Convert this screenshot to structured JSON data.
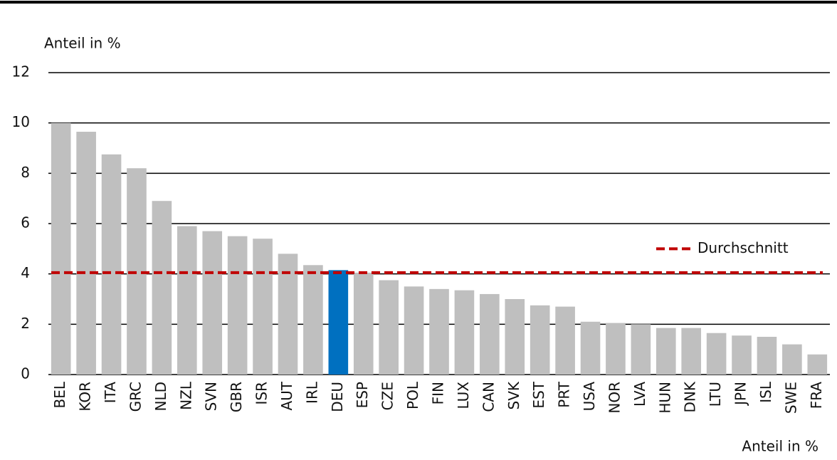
{
  "chart_data": {
    "type": "bar",
    "y_label": "Anteil in %",
    "x_label": "Anteil in %",
    "categories": [
      "BEL",
      "KOR",
      "ITA",
      "GRC",
      "NLD",
      "NZL",
      "SVN",
      "GBR",
      "ISR",
      "AUT",
      "IRL",
      "DEU",
      "ESP",
      "CZE",
      "POL",
      "FIN",
      "LUX",
      "CAN",
      "SVK",
      "EST",
      "PRT",
      "USA",
      "NOR",
      "LVA",
      "HUN",
      "DNK",
      "LTU",
      "JPN",
      "ISL",
      "SWE",
      "FRA"
    ],
    "values": [
      10.0,
      9.65,
      8.75,
      8.2,
      6.9,
      5.9,
      5.7,
      5.5,
      5.4,
      4.8,
      4.35,
      4.15,
      4.05,
      3.75,
      3.5,
      3.4,
      3.35,
      3.2,
      3.0,
      2.75,
      2.7,
      2.1,
      2.05,
      2.0,
      1.85,
      1.85,
      1.65,
      1.55,
      1.5,
      1.2,
      0.8
    ],
    "colors": [
      "#bfbfbf",
      "#bfbfbf",
      "#bfbfbf",
      "#bfbfbf",
      "#bfbfbf",
      "#bfbfbf",
      "#bfbfbf",
      "#bfbfbf",
      "#bfbfbf",
      "#bfbfbf",
      "#bfbfbf",
      "#0070c0",
      "#bfbfbf",
      "#bfbfbf",
      "#bfbfbf",
      "#bfbfbf",
      "#bfbfbf",
      "#bfbfbf",
      "#bfbfbf",
      "#bfbfbf",
      "#bfbfbf",
      "#bfbfbf",
      "#bfbfbf",
      "#bfbfbf",
      "#bfbfbf",
      "#bfbfbf",
      "#bfbfbf",
      "#bfbfbf",
      "#bfbfbf",
      "#bfbfbf",
      "#bfbfbf"
    ],
    "average": {
      "name": "Durchschnitt",
      "value": 4.05,
      "color": "#c00000"
    },
    "legend": "right",
    "ylim": [
      0,
      12
    ],
    "yticks": [
      0,
      2,
      4,
      6,
      8,
      10,
      12
    ],
    "grid": true
  }
}
